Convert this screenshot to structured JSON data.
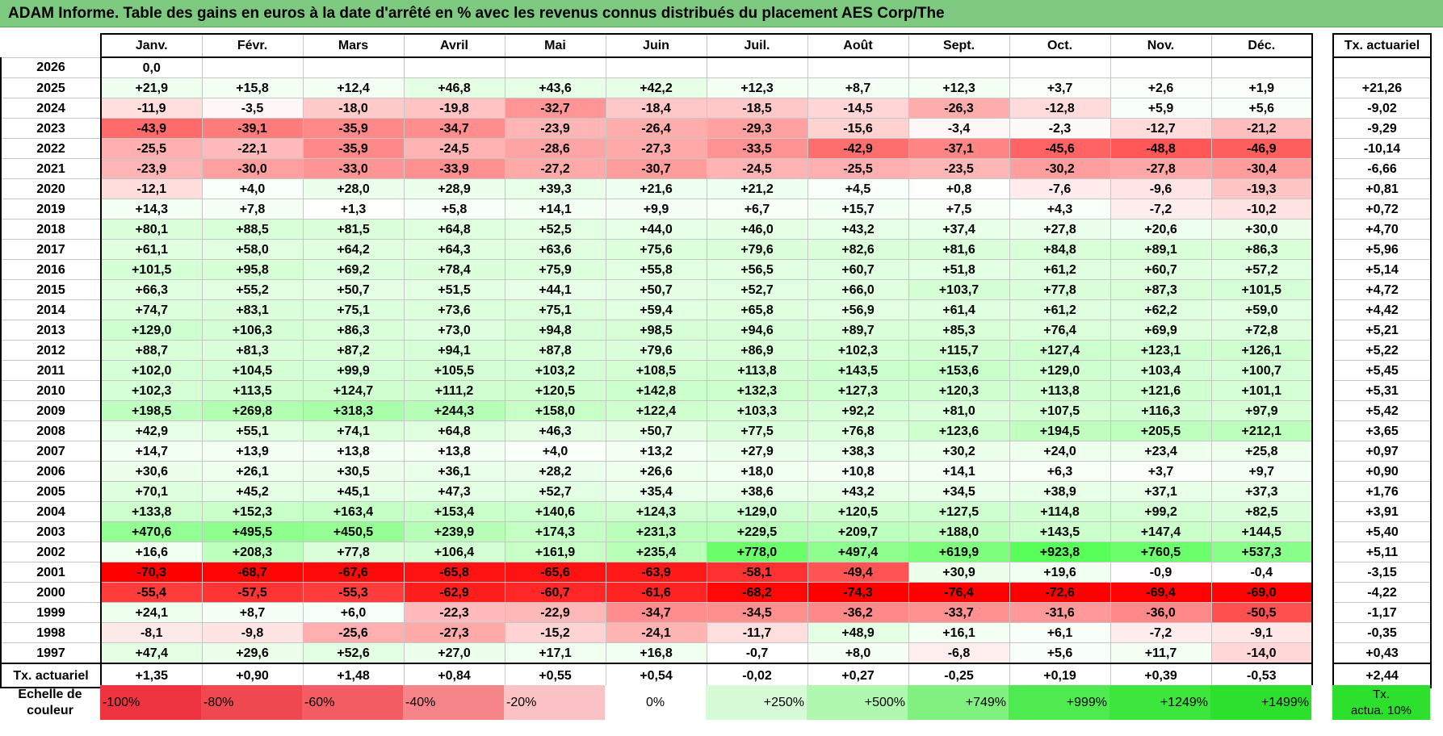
{
  "title": "ADAM Informe. Table des gains en euros à la date d'arrêté en % avec les revenus connus distribués du placement AES Corp/The",
  "months": [
    "Janv.",
    "Févr.",
    "Mars",
    "Avril",
    "Mai",
    "Juin",
    "Juil.",
    "Août",
    "Sept.",
    "Oct.",
    "Nov.",
    "Déc."
  ],
  "actuarial_header": "Tx. actuariel",
  "rows": [
    {
      "year": "2026",
      "values": [
        "0,0",
        "",
        "",
        "",
        "",
        "",
        "",
        "",
        "",
        "",
        "",
        ""
      ],
      "actuarial": ""
    },
    {
      "year": "2025",
      "values": [
        "+21,9",
        "+15,8",
        "+12,4",
        "+46,8",
        "+43,6",
        "+42,2",
        "+12,3",
        "+8,7",
        "+12,3",
        "+3,7",
        "+2,6",
        "+1,9"
      ],
      "actuarial": "+21,26"
    },
    {
      "year": "2024",
      "values": [
        "-11,9",
        "-3,5",
        "-18,0",
        "-19,8",
        "-32,7",
        "-18,4",
        "-18,5",
        "-14,5",
        "-26,3",
        "-12,8",
        "+5,9",
        "+5,6"
      ],
      "actuarial": "-9,02"
    },
    {
      "year": "2023",
      "values": [
        "-43,9",
        "-39,1",
        "-35,9",
        "-34,7",
        "-23,9",
        "-26,4",
        "-29,3",
        "-15,6",
        "-3,4",
        "-2,3",
        "-12,7",
        "-21,2"
      ],
      "actuarial": "-9,29"
    },
    {
      "year": "2022",
      "values": [
        "-25,5",
        "-22,1",
        "-35,9",
        "-24,5",
        "-28,6",
        "-27,3",
        "-33,5",
        "-42,9",
        "-37,1",
        "-45,6",
        "-48,8",
        "-46,9"
      ],
      "actuarial": "-10,14"
    },
    {
      "year": "2021",
      "values": [
        "-23,9",
        "-30,0",
        "-33,0",
        "-33,9",
        "-27,2",
        "-30,7",
        "-24,5",
        "-25,5",
        "-23,5",
        "-30,2",
        "-27,8",
        "-30,4"
      ],
      "actuarial": "-6,66"
    },
    {
      "year": "2020",
      "values": [
        "-12,1",
        "+4,0",
        "+28,0",
        "+28,9",
        "+39,3",
        "+21,6",
        "+21,2",
        "+4,5",
        "+0,8",
        "-7,6",
        "-9,6",
        "-19,3"
      ],
      "actuarial": "+0,81"
    },
    {
      "year": "2019",
      "values": [
        "+14,3",
        "+7,8",
        "+1,3",
        "+5,8",
        "+14,1",
        "+9,9",
        "+6,7",
        "+15,7",
        "+7,5",
        "+4,3",
        "-7,2",
        "-10,2"
      ],
      "actuarial": "+0,72"
    },
    {
      "year": "2018",
      "values": [
        "+80,1",
        "+88,5",
        "+81,5",
        "+64,8",
        "+52,5",
        "+44,0",
        "+46,0",
        "+43,2",
        "+37,4",
        "+27,8",
        "+20,6",
        "+30,0"
      ],
      "actuarial": "+4,70"
    },
    {
      "year": "2017",
      "values": [
        "+61,1",
        "+58,0",
        "+64,2",
        "+64,3",
        "+63,6",
        "+75,6",
        "+79,6",
        "+82,6",
        "+81,6",
        "+84,8",
        "+89,1",
        "+86,3"
      ],
      "actuarial": "+5,96"
    },
    {
      "year": "2016",
      "values": [
        "+101,5",
        "+95,8",
        "+69,2",
        "+78,4",
        "+75,9",
        "+55,8",
        "+56,5",
        "+60,7",
        "+51,8",
        "+61,2",
        "+60,7",
        "+57,2"
      ],
      "actuarial": "+5,14"
    },
    {
      "year": "2015",
      "values": [
        "+66,3",
        "+55,2",
        "+50,7",
        "+51,5",
        "+44,1",
        "+50,7",
        "+52,7",
        "+66,0",
        "+103,7",
        "+77,8",
        "+87,3",
        "+101,5"
      ],
      "actuarial": "+4,72"
    },
    {
      "year": "2014",
      "values": [
        "+74,7",
        "+83,1",
        "+75,1",
        "+73,6",
        "+75,1",
        "+59,4",
        "+65,8",
        "+56,9",
        "+61,4",
        "+61,2",
        "+62,2",
        "+59,0"
      ],
      "actuarial": "+4,42"
    },
    {
      "year": "2013",
      "values": [
        "+129,0",
        "+106,3",
        "+86,3",
        "+73,0",
        "+94,8",
        "+98,5",
        "+94,6",
        "+89,7",
        "+85,3",
        "+76,4",
        "+69,9",
        "+72,8"
      ],
      "actuarial": "+5,21"
    },
    {
      "year": "2012",
      "values": [
        "+88,7",
        "+81,3",
        "+87,2",
        "+94,1",
        "+87,8",
        "+79,6",
        "+86,9",
        "+102,3",
        "+115,7",
        "+127,4",
        "+123,1",
        "+126,1"
      ],
      "actuarial": "+5,22"
    },
    {
      "year": "2011",
      "values": [
        "+102,0",
        "+104,5",
        "+99,9",
        "+105,5",
        "+103,2",
        "+108,5",
        "+113,8",
        "+143,5",
        "+153,6",
        "+129,0",
        "+103,4",
        "+100,7"
      ],
      "actuarial": "+5,45"
    },
    {
      "year": "2010",
      "values": [
        "+102,3",
        "+113,5",
        "+124,7",
        "+111,2",
        "+120,5",
        "+142,8",
        "+132,3",
        "+127,3",
        "+120,3",
        "+113,8",
        "+121,6",
        "+101,1"
      ],
      "actuarial": "+5,31"
    },
    {
      "year": "2009",
      "values": [
        "+198,5",
        "+269,8",
        "+318,3",
        "+244,3",
        "+158,0",
        "+122,4",
        "+103,3",
        "+92,2",
        "+81,0",
        "+107,5",
        "+116,3",
        "+97,9"
      ],
      "actuarial": "+5,42"
    },
    {
      "year": "2008",
      "values": [
        "+42,9",
        "+55,1",
        "+74,1",
        "+64,8",
        "+46,3",
        "+50,7",
        "+77,5",
        "+76,8",
        "+123,6",
        "+194,5",
        "+205,5",
        "+212,1"
      ],
      "actuarial": "+3,65"
    },
    {
      "year": "2007",
      "values": [
        "+14,7",
        "+13,9",
        "+13,8",
        "+13,8",
        "+4,0",
        "+13,2",
        "+27,9",
        "+38,3",
        "+30,2",
        "+24,0",
        "+23,4",
        "+25,8"
      ],
      "actuarial": "+0,97"
    },
    {
      "year": "2006",
      "values": [
        "+30,6",
        "+26,1",
        "+30,5",
        "+36,1",
        "+28,2",
        "+26,6",
        "+18,0",
        "+10,8",
        "+14,1",
        "+6,3",
        "+3,7",
        "+9,7"
      ],
      "actuarial": "+0,90"
    },
    {
      "year": "2005",
      "values": [
        "+70,1",
        "+45,2",
        "+45,1",
        "+47,3",
        "+52,7",
        "+35,4",
        "+38,6",
        "+43,2",
        "+34,5",
        "+38,9",
        "+37,1",
        "+37,3"
      ],
      "actuarial": "+1,76"
    },
    {
      "year": "2004",
      "values": [
        "+133,8",
        "+152,3",
        "+163,4",
        "+153,4",
        "+140,6",
        "+124,3",
        "+129,0",
        "+120,5",
        "+127,5",
        "+114,8",
        "+99,2",
        "+82,5"
      ],
      "actuarial": "+3,91"
    },
    {
      "year": "2003",
      "values": [
        "+470,6",
        "+495,5",
        "+450,5",
        "+239,9",
        "+174,3",
        "+231,3",
        "+229,5",
        "+209,7",
        "+188,0",
        "+143,5",
        "+147,4",
        "+144,5"
      ],
      "actuarial": "+5,40"
    },
    {
      "year": "2002",
      "values": [
        "+16,6",
        "+208,3",
        "+77,8",
        "+106,4",
        "+161,9",
        "+235,4",
        "+778,0",
        "+497,4",
        "+619,9",
        "+923,8",
        "+760,5",
        "+537,3"
      ],
      "actuarial": "+5,11"
    },
    {
      "year": "2001",
      "values": [
        "-70,3",
        "-68,7",
        "-67,6",
        "-65,8",
        "-65,6",
        "-63,9",
        "-58,1",
        "-49,4",
        "+30,9",
        "+19,6",
        "-0,9",
        "-0,4"
      ],
      "actuarial": "-3,15"
    },
    {
      "year": "2000",
      "values": [
        "-55,4",
        "-57,5",
        "-55,3",
        "-62,9",
        "-60,7",
        "-61,6",
        "-68,2",
        "-74,3",
        "-76,4",
        "-72,6",
        "-69,4",
        "-69,0"
      ],
      "actuarial": "-4,22"
    },
    {
      "year": "1999",
      "values": [
        "+24,1",
        "+8,7",
        "+6,0",
        "-22,3",
        "-22,9",
        "-34,7",
        "-34,5",
        "-36,2",
        "-33,7",
        "-31,6",
        "-36,0",
        "-50,5"
      ],
      "actuarial": "-1,17"
    },
    {
      "year": "1998",
      "values": [
        "-8,1",
        "-9,8",
        "-25,6",
        "-27,3",
        "-15,2",
        "-24,1",
        "-11,7",
        "+48,9",
        "+16,1",
        "+6,1",
        "-7,2",
        "-9,1"
      ],
      "actuarial": "-0,35"
    },
    {
      "year": "1997",
      "values": [
        "+47,4",
        "+29,6",
        "+52,6",
        "+27,0",
        "+17,1",
        "+16,8",
        "-0,7",
        "+8,0",
        "-6,8",
        "+5,6",
        "+11,7",
        "-14,0"
      ],
      "actuarial": "+0,43"
    }
  ],
  "summary": {
    "label": "Tx. actuariel",
    "values": [
      "+1,35",
      "+0,90",
      "+1,48",
      "+0,84",
      "+0,55",
      "+0,54",
      "-0,02",
      "+0,27",
      "-0,25",
      "+0,19",
      "+0,39",
      "-0,53"
    ],
    "total": "+2,44"
  },
  "legend": {
    "label_line1": "Echelle de",
    "label_line2": "couleur",
    "steps": [
      "-100%",
      "-80%",
      "-60%",
      "-40%",
      "-20%",
      "0%",
      "+250%",
      "+500%",
      "+749%",
      "+999%",
      "+1249%",
      "+1499%"
    ],
    "actuarial_line1": "Tx.",
    "actuarial_line2": "actua. 10%",
    "colors": [
      "#ee3440",
      "#f04850",
      "#f35c63",
      "#f58589",
      "#fac2c4",
      "#ffffff",
      "#d6fbd6",
      "#b0f7b0",
      "#80f080",
      "#4fea4f",
      "#3de63d",
      "#2ee02e"
    ],
    "actuarial_color": "#2ee02e"
  },
  "colors": {
    "title_bg": "#7dc97f",
    "negative_max": "#ff0000",
    "positive_max": "#32ff32"
  }
}
